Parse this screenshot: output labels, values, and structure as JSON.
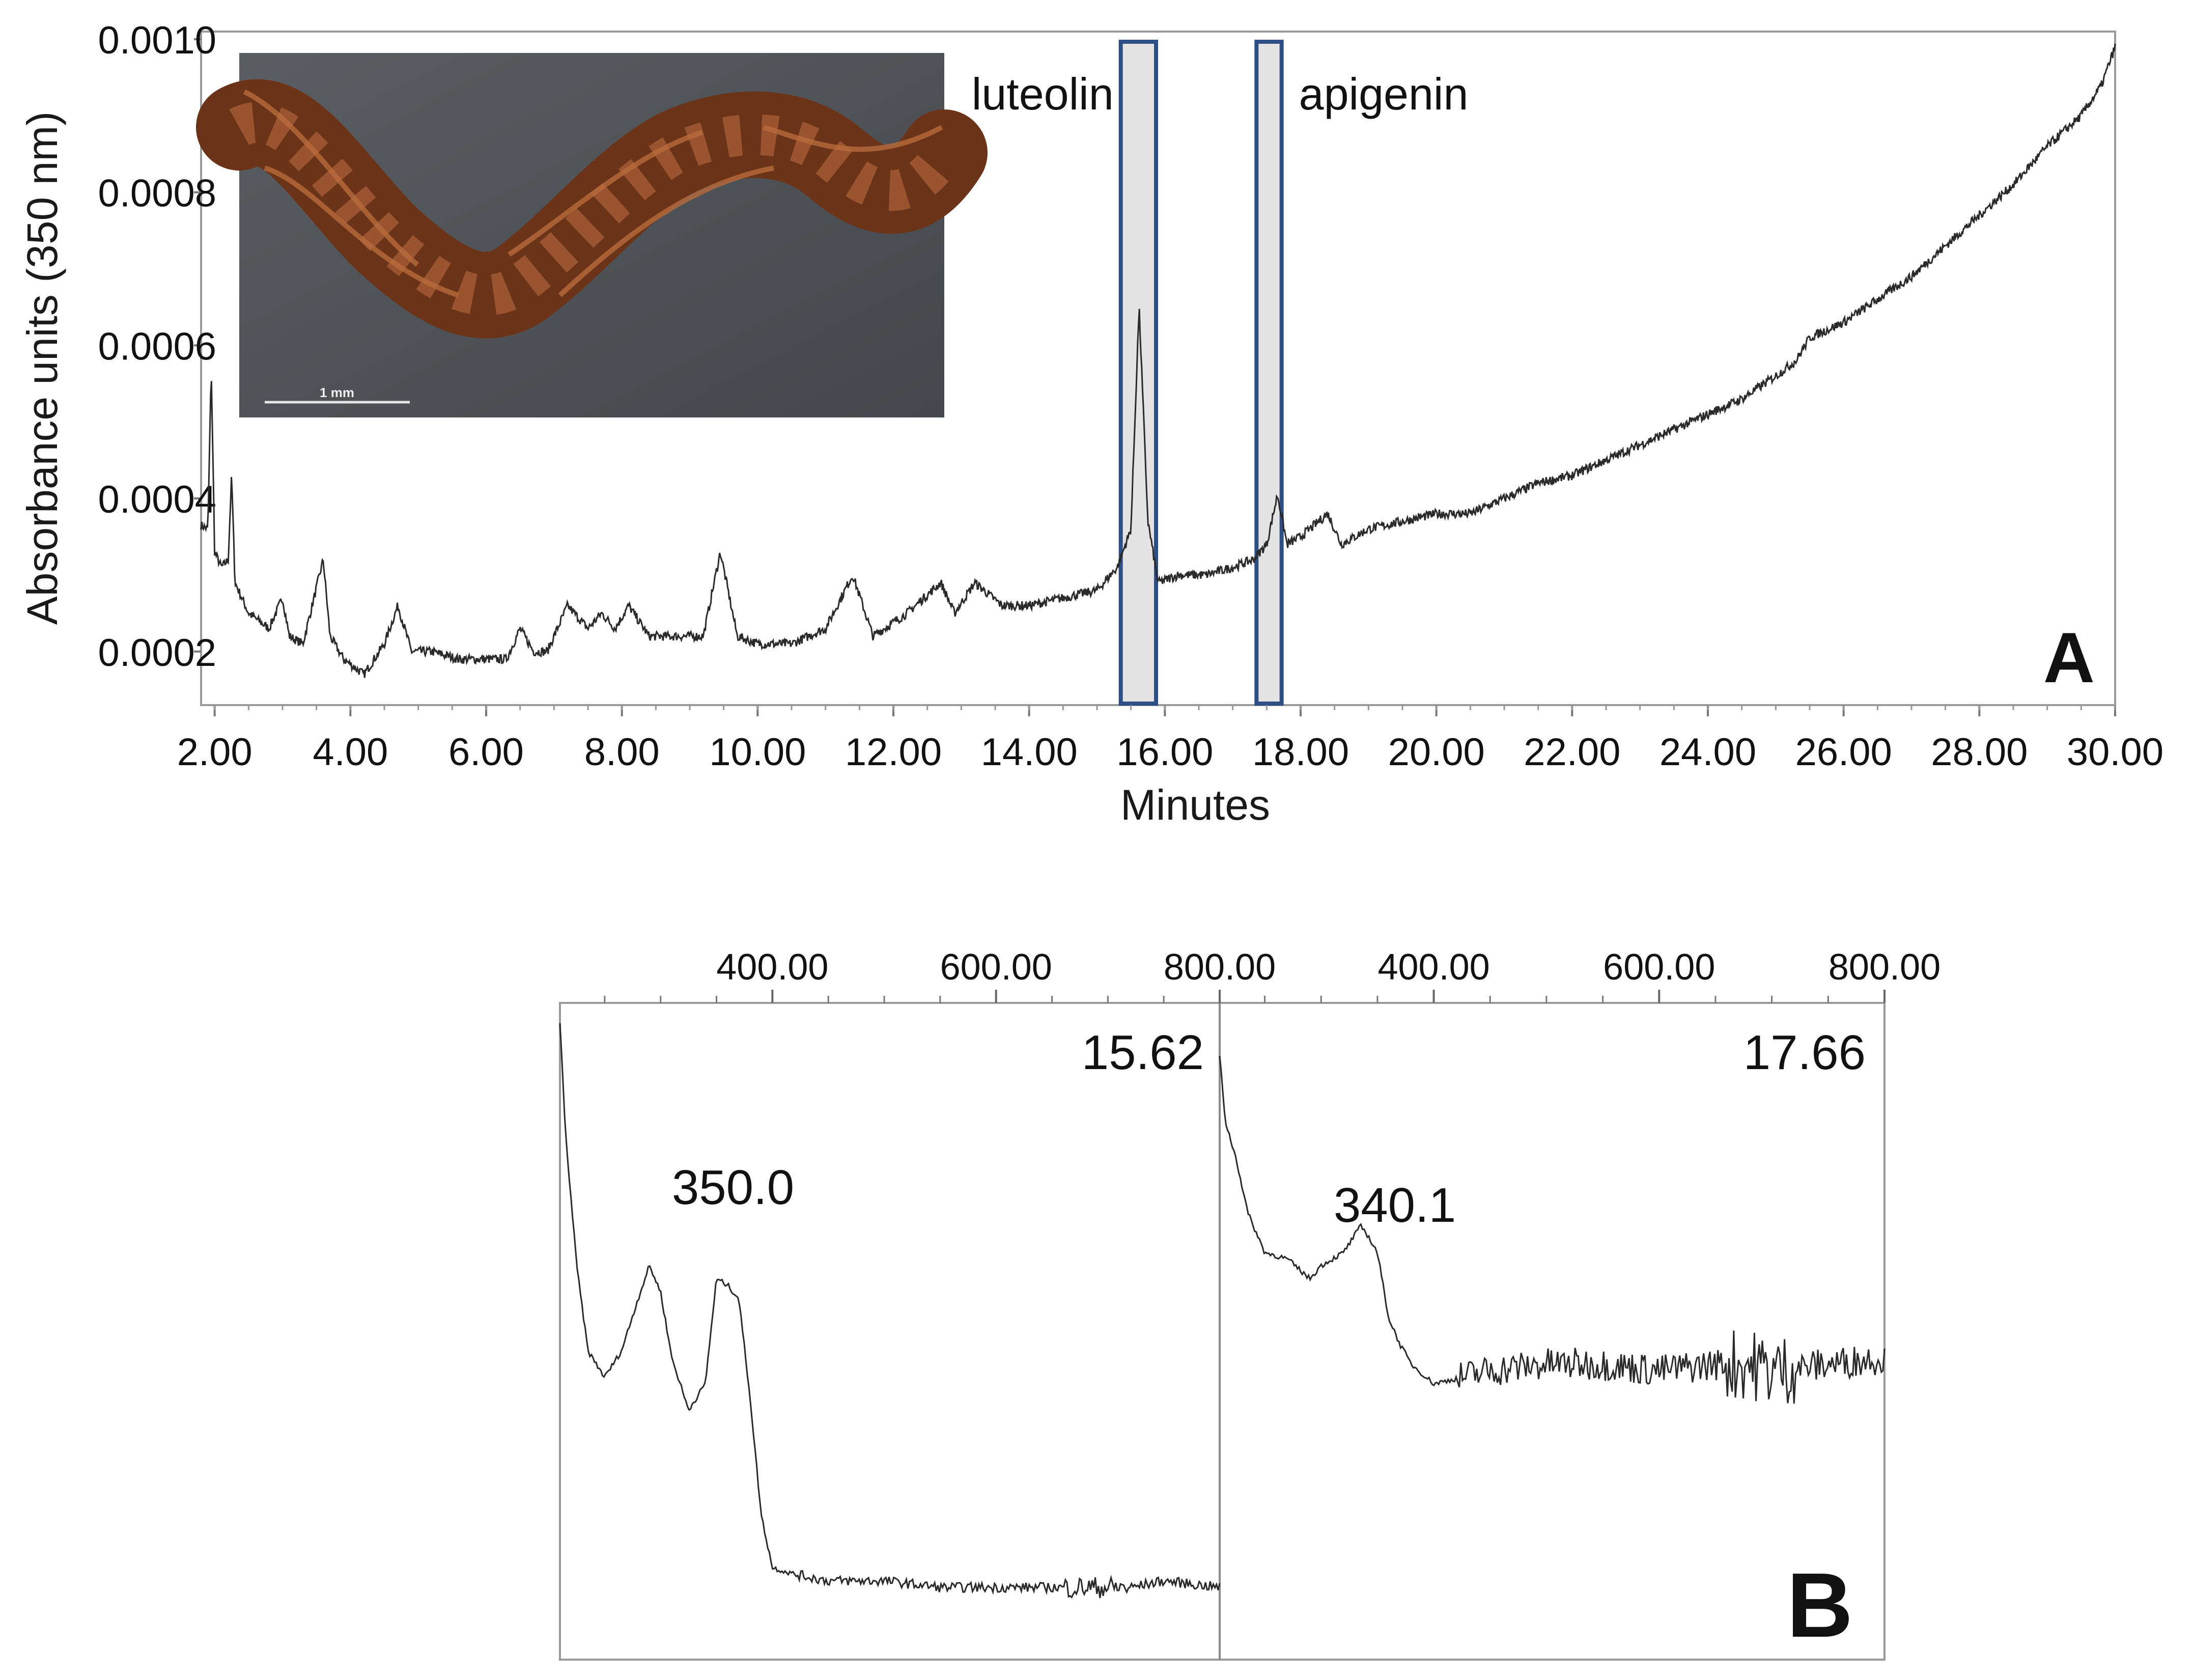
{
  "chart_data": [
    {
      "panel": "A",
      "type": "line",
      "xlabel": "Minutes",
      "ylabel": "Absorbance units (350 nm)",
      "xlim": [
        1.8,
        30.0
      ],
      "ylim": [
        0.00013,
        0.00101
      ],
      "xticks": [
        "2.00",
        "4.00",
        "6.00",
        "8.00",
        "10.00",
        "12.00",
        "14.00",
        "16.00",
        "18.00",
        "20.00",
        "22.00",
        "24.00",
        "26.00",
        "28.00",
        "30.00"
      ],
      "yticks": [
        "0.0002",
        "0.0004",
        "0.0006",
        "0.0008",
        "0.0010"
      ],
      "series": [
        {
          "x": [
            1.8,
            1.9,
            1.95,
            2.0,
            2.1,
            2.2,
            2.25,
            2.3,
            2.5,
            2.8,
            3.0,
            3.1,
            3.3,
            3.6,
            3.7,
            3.9,
            4.2,
            4.5,
            4.7,
            4.9,
            5.2,
            5.6,
            6.0,
            6.3,
            6.5,
            6.7,
            6.9,
            7.2,
            7.5,
            7.7,
            7.9,
            8.1,
            8.4,
            8.8,
            9.2,
            9.45,
            9.7,
            10.0,
            10.5,
            11.0,
            11.4,
            11.7,
            12.2,
            12.7,
            12.9,
            13.2,
            13.6,
            14.0,
            14.5,
            15.0,
            15.3,
            15.5,
            15.62,
            15.75,
            15.9,
            16.2,
            16.6,
            17.0,
            17.3,
            17.5,
            17.66,
            17.8,
            18.0,
            18.4,
            18.6,
            19.0,
            19.5,
            20.0,
            20.5,
            21.0,
            21.5,
            22.0,
            22.5,
            23.0,
            23.5,
            24.0,
            24.5,
            25.0,
            25.3,
            25.5,
            26.0,
            26.5,
            27.0,
            27.5,
            28.0,
            28.5,
            29.0,
            29.5,
            29.8,
            30.0
          ],
          "values": [
            0.000365,
            0.00036,
            0.00057,
            0.00033,
            0.00031,
            0.00032,
            0.00043,
            0.00029,
            0.00025,
            0.00023,
            0.00027,
            0.00022,
            0.00021,
            0.00032,
            0.00022,
            0.00019,
            0.00017,
            0.00021,
            0.00026,
            0.0002,
            0.0002,
            0.00019,
            0.00019,
            0.00019,
            0.00023,
            0.0002,
            0.0002,
            0.00026,
            0.00023,
            0.00025,
            0.00023,
            0.00026,
            0.00022,
            0.00022,
            0.00022,
            0.00033,
            0.00022,
            0.00021,
            0.00021,
            0.00023,
            0.0003,
            0.00022,
            0.00025,
            0.00029,
            0.00025,
            0.00029,
            0.00026,
            0.00026,
            0.00027,
            0.00028,
            0.00031,
            0.00036,
            0.00065,
            0.00037,
            0.00029,
            0.0003,
            0.0003,
            0.00031,
            0.00032,
            0.00034,
            0.000405,
            0.00034,
            0.00035,
            0.00038,
            0.00034,
            0.00036,
            0.00037,
            0.00038,
            0.00038,
            0.0004,
            0.00042,
            0.00043,
            0.00045,
            0.00047,
            0.00049,
            0.00051,
            0.00053,
            0.00056,
            0.00058,
            0.00061,
            0.00063,
            0.00066,
            0.00069,
            0.00073,
            0.00077,
            0.00081,
            0.00086,
            0.0009,
            0.00094,
            0.00099
          ]
        }
      ],
      "highlights": [
        {
          "label": "luteolin",
          "x0": 15.35,
          "x1": 15.87
        },
        {
          "label": "apigenin",
          "x0": 17.35,
          "x1": 17.72
        }
      ],
      "inset_photo": {
        "scale_label": "1 mm"
      },
      "panel_label": "A"
    },
    {
      "panel": "B",
      "type": "line",
      "subplots": [
        {
          "retention_time": "15.62",
          "peak_label": "350.0",
          "xlim": [
            210,
            800
          ],
          "xticks": [
            "400.00",
            "600.00",
            "800.00"
          ],
          "x": [
            210,
            215,
            225,
            235,
            250,
            265,
            280,
            290,
            300,
            310,
            325,
            340,
            350,
            360,
            370,
            380,
            390,
            400,
            420,
            450,
            500,
            550,
            600,
            650,
            700,
            720,
            750,
            800
          ],
          "values": [
            0.97,
            0.8,
            0.6,
            0.47,
            0.43,
            0.47,
            0.55,
            0.6,
            0.56,
            0.46,
            0.38,
            0.42,
            0.58,
            0.57,
            0.55,
            0.4,
            0.22,
            0.14,
            0.13,
            0.12,
            0.12,
            0.11,
            0.11,
            0.11,
            0.11,
            0.11,
            0.12,
            0.11
          ]
        },
        {
          "retention_time": "17.66",
          "peak_label": "340.1",
          "xlim": [
            210,
            800
          ],
          "xticks": [
            "400.00",
            "600.00",
            "800.00"
          ],
          "x": [
            210,
            215,
            225,
            235,
            250,
            270,
            290,
            300,
            320,
            335,
            340,
            350,
            360,
            370,
            380,
            400,
            450,
            500,
            550,
            600,
            650,
            680,
            700,
            750,
            800
          ],
          "values": [
            0.92,
            0.82,
            0.76,
            0.68,
            0.62,
            0.61,
            0.58,
            0.6,
            0.62,
            0.66,
            0.65,
            0.62,
            0.52,
            0.48,
            0.45,
            0.42,
            0.44,
            0.45,
            0.45,
            0.44,
            0.45,
            0.45,
            0.44,
            0.45,
            0.46
          ]
        }
      ],
      "panel_label": "B"
    }
  ]
}
